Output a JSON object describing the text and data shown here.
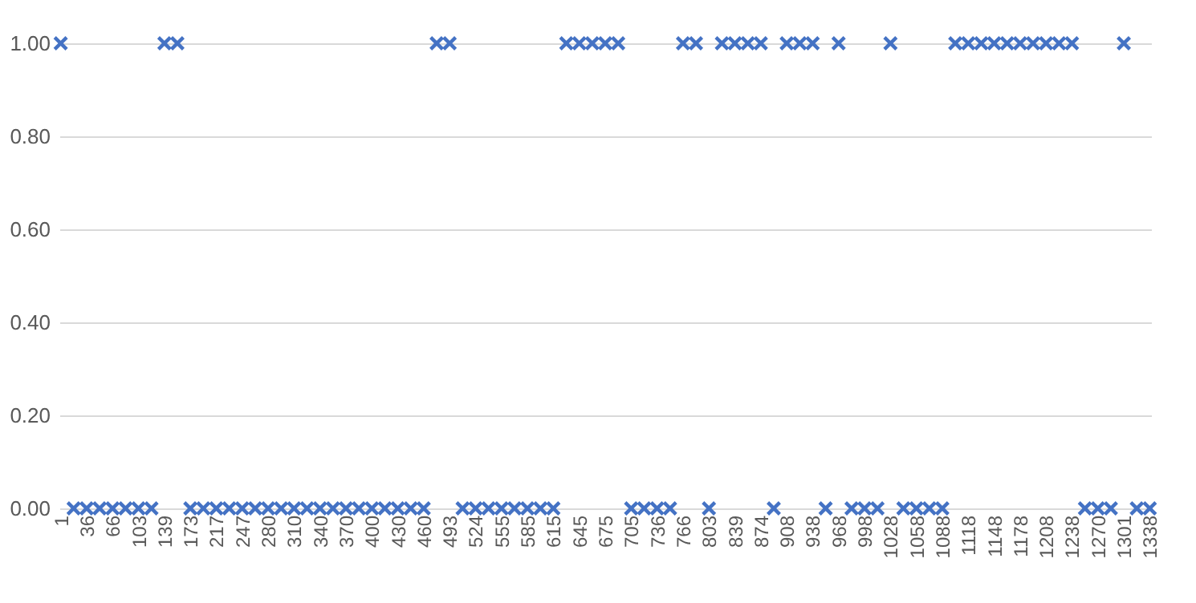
{
  "chart_data": {
    "type": "scatter",
    "categories": [
      "1",
      null,
      "36",
      null,
      "66",
      null,
      "103",
      null,
      "139",
      null,
      "173",
      null,
      "217",
      null,
      "247",
      null,
      "280",
      null,
      "310",
      null,
      "340",
      null,
      "370",
      null,
      "400",
      null,
      "430",
      null,
      "460",
      null,
      "493",
      null,
      "524",
      null,
      "555",
      null,
      "585",
      null,
      "615",
      null,
      "645",
      null,
      "675",
      null,
      "705",
      null,
      "736",
      null,
      "766",
      null,
      "803",
      null,
      "839",
      null,
      "874",
      null,
      "908",
      null,
      "938",
      null,
      "968",
      null,
      "998",
      null,
      "1028",
      null,
      "1058",
      null,
      "1088",
      null,
      "1118",
      null,
      "1148",
      null,
      "1178",
      null,
      "1208",
      null,
      "1238",
      null,
      "1270",
      null,
      "1301",
      null,
      "1338"
    ],
    "series": [
      {
        "color": "#4472c4",
        "values": [
          1,
          0,
          0,
          0,
          0,
          0,
          0,
          0,
          1,
          1,
          0,
          0,
          0,
          0,
          0,
          0,
          0,
          0,
          0,
          0,
          0,
          0,
          0,
          0,
          0,
          0,
          0,
          0,
          0,
          1,
          1,
          0,
          0,
          0,
          0,
          0,
          0,
          0,
          0,
          1,
          1,
          1,
          1,
          1,
          0,
          0,
          0,
          0,
          1,
          1,
          0,
          1,
          1,
          1,
          1,
          0,
          1,
          1,
          1,
          0,
          1,
          0,
          0,
          0,
          1,
          0,
          0,
          0,
          0,
          1,
          1,
          1,
          1,
          1,
          1,
          1,
          1,
          1,
          1,
          0,
          0,
          0,
          1,
          0,
          0
        ]
      }
    ],
    "ylim": [
      0,
      1
    ],
    "yticks": [
      {
        "value": 0,
        "label": "0.00"
      },
      {
        "value": 0.2,
        "label": "0.20"
      },
      {
        "value": 0.4,
        "label": "0.40"
      },
      {
        "value": 0.6,
        "label": "0.60"
      },
      {
        "value": 0.8,
        "label": "0.80"
      },
      {
        "value": 1,
        "label": "1.00"
      }
    ],
    "grid": "y",
    "marker": "cross",
    "legend": false
  }
}
